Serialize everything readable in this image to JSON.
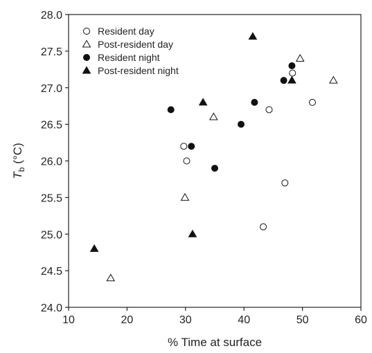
{
  "chart_data": {
    "type": "scatter",
    "xlabel": "% Time at surface",
    "ylabel_main": "T",
    "ylabel_sub": "b",
    "ylabel_unit": " (°C)",
    "xlim": [
      10,
      60
    ],
    "ylim": [
      24.0,
      28.0
    ],
    "xticks": [
      10,
      20,
      30,
      40,
      50,
      60
    ],
    "yticks": [
      24.0,
      24.5,
      25.0,
      25.5,
      26.0,
      26.5,
      27.0,
      27.5,
      28.0
    ],
    "ytick_labels": [
      "24.0",
      "24.5",
      "25.0",
      "25.5",
      "26.0",
      "26.5",
      "27.0",
      "27.5",
      "28.0"
    ],
    "grid": false,
    "legend_position": "top-left",
    "series": [
      {
        "name": "Resident day",
        "marker": "circle",
        "filled": false,
        "points": [
          [
            29.7,
            26.2
          ],
          [
            30.2,
            26.0
          ],
          [
            43.3,
            25.1
          ],
          [
            44.3,
            26.7
          ],
          [
            47.0,
            25.7
          ],
          [
            48.3,
            27.2
          ],
          [
            51.7,
            26.8
          ]
        ]
      },
      {
        "name": "Post-resident day",
        "marker": "triangle",
        "filled": false,
        "points": [
          [
            17.2,
            24.4
          ],
          [
            29.9,
            25.5
          ],
          [
            34.8,
            26.6
          ],
          [
            49.6,
            27.4
          ],
          [
            55.3,
            27.1
          ]
        ]
      },
      {
        "name": "Resident night",
        "marker": "circle",
        "filled": true,
        "points": [
          [
            27.5,
            26.7
          ],
          [
            31.0,
            26.2
          ],
          [
            35.0,
            25.9
          ],
          [
            39.5,
            26.5
          ],
          [
            41.8,
            26.8
          ],
          [
            46.8,
            27.1
          ],
          [
            48.2,
            27.3
          ]
        ]
      },
      {
        "name": "Post-resident night",
        "marker": "triangle",
        "filled": true,
        "points": [
          [
            14.4,
            24.8
          ],
          [
            31.2,
            25.0
          ],
          [
            33.0,
            26.8
          ],
          [
            41.5,
            27.7
          ],
          [
            48.2,
            27.1
          ]
        ]
      }
    ]
  }
}
